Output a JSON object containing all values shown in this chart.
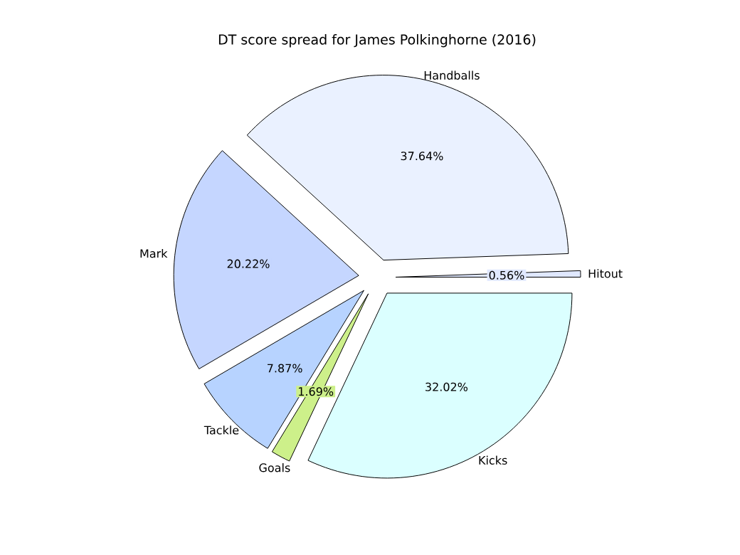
{
  "chart_data": {
    "type": "pie",
    "title": "DT score spread for James Polkinghorne (2016)",
    "categories": [
      "Hitout",
      "Handballs",
      "Mark",
      "Tackle",
      "Goals",
      "Kicks"
    ],
    "values": [
      0.56,
      37.64,
      20.22,
      7.87,
      1.69,
      32.02
    ],
    "value_labels": [
      "0.56%",
      "37.64%",
      "20.22%",
      "7.87%",
      "1.69%",
      "32.02%"
    ],
    "colors": [
      "#e0e8ff",
      "#eaf1ff",
      "#c5d6ff",
      "#b7d3ff",
      "#cdf08a",
      "#dbffff"
    ]
  }
}
